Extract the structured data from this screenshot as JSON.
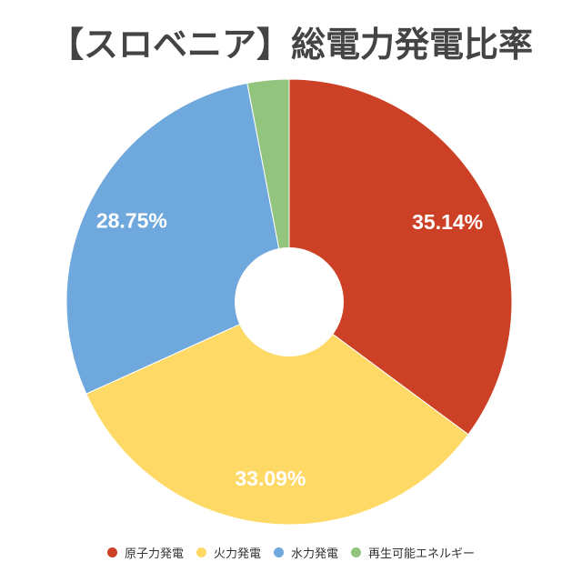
{
  "chart_data": {
    "type": "pie",
    "title": "【スロベニア】総電力発電比率",
    "donut": true,
    "legend_position": "bottom",
    "categories": [
      "原子力発電",
      "火力発電",
      "水力発電",
      "再生可能エネルギー"
    ],
    "values": [
      35.14,
      33.09,
      28.75,
      3.02
    ],
    "value_labels": [
      "35.14%",
      "33.09%",
      "28.75%",
      ""
    ],
    "colors": [
      "#cc4125",
      "#ffd966",
      "#6fa8dc",
      "#93c47d"
    ]
  }
}
